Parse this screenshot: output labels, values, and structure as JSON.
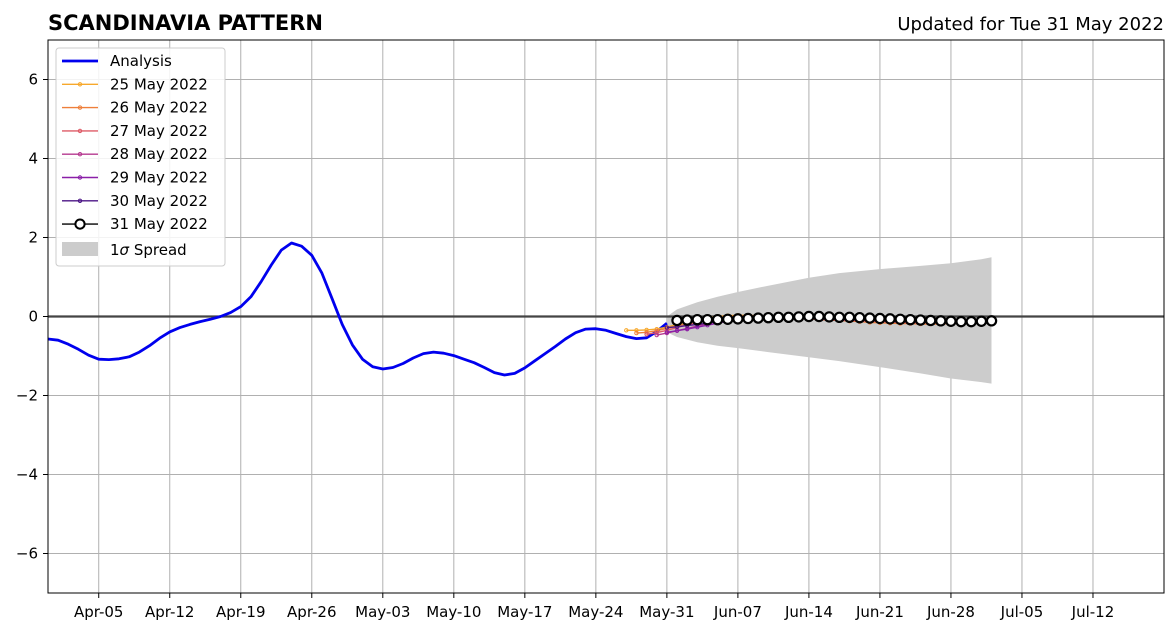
{
  "chart_data": {
    "type": "line",
    "title": "SCANDINAVIA PATTERN",
    "subtitle": "Updated for Tue 31 May 2022",
    "xlabel": "",
    "ylabel": "",
    "ylim": [
      -7,
      7
    ],
    "yticks": [
      6,
      4,
      2,
      0,
      -2,
      -4,
      -6
    ],
    "ytick_labels": [
      "6",
      "4",
      "2",
      "0",
      "−2",
      "−4",
      "−6"
    ],
    "xlim": [
      "2022-03-31",
      "2022-07-19"
    ],
    "xticks": [
      "2022-04-05",
      "2022-04-12",
      "2022-04-19",
      "2022-04-26",
      "2022-05-03",
      "2022-05-10",
      "2022-05-17",
      "2022-05-24",
      "2022-05-31",
      "2022-06-07",
      "2022-06-14",
      "2022-06-21",
      "2022-06-28",
      "2022-07-05",
      "2022-07-12"
    ],
    "xtick_labels": [
      "Apr-05",
      "Apr-12",
      "Apr-19",
      "Apr-26",
      "May-03",
      "May-10",
      "May-17",
      "May-24",
      "May-31",
      "Jun-07",
      "Jun-14",
      "Jun-21",
      "Jun-28",
      "Jul-05",
      "Jul-12"
    ],
    "grid": true,
    "legend_position": "top-left",
    "legend": [
      "Analysis",
      "25 May 2022",
      "26 May 2022",
      "27 May 2022",
      "28 May 2022",
      "29 May 2022",
      "30 May 2022",
      "31 May 2022",
      "1σ Spread"
    ],
    "spread_label_prefix": "1",
    "spread_label_symbol": "σ",
    "spread_label_suffix": " Spread",
    "analysis": {
      "name": "Analysis",
      "color": "#0000ee",
      "x": [
        "2022-03-31",
        "2022-04-01",
        "2022-04-02",
        "2022-04-03",
        "2022-04-04",
        "2022-04-05",
        "2022-04-06",
        "2022-04-07",
        "2022-04-08",
        "2022-04-09",
        "2022-04-10",
        "2022-04-11",
        "2022-04-12",
        "2022-04-13",
        "2022-04-14",
        "2022-04-15",
        "2022-04-16",
        "2022-04-17",
        "2022-04-18",
        "2022-04-19",
        "2022-04-20",
        "2022-04-21",
        "2022-04-22",
        "2022-04-23",
        "2022-04-24",
        "2022-04-25",
        "2022-04-26",
        "2022-04-27",
        "2022-04-28",
        "2022-04-29",
        "2022-04-30",
        "2022-05-01",
        "2022-05-02",
        "2022-05-03",
        "2022-05-04",
        "2022-05-05",
        "2022-05-06",
        "2022-05-07",
        "2022-05-08",
        "2022-05-09",
        "2022-05-10",
        "2022-05-11",
        "2022-05-12",
        "2022-05-13",
        "2022-05-14",
        "2022-05-15",
        "2022-05-16",
        "2022-05-17",
        "2022-05-18",
        "2022-05-19",
        "2022-05-20",
        "2022-05-21",
        "2022-05-22",
        "2022-05-23",
        "2022-05-24",
        "2022-05-25",
        "2022-05-26",
        "2022-05-27",
        "2022-05-28",
        "2022-05-29",
        "2022-05-30",
        "2022-05-31"
      ],
      "values": [
        -0.57,
        -0.6,
        -0.7,
        -0.83,
        -0.98,
        -1.08,
        -1.09,
        -1.07,
        -1.02,
        -0.9,
        -0.74,
        -0.55,
        -0.39,
        -0.28,
        -0.2,
        -0.13,
        -0.07,
        0.0,
        0.1,
        0.25,
        0.5,
        0.88,
        1.3,
        1.68,
        1.86,
        1.78,
        1.55,
        1.1,
        0.45,
        -0.2,
        -0.72,
        -1.08,
        -1.27,
        -1.33,
        -1.29,
        -1.19,
        -1.05,
        -0.94,
        -0.9,
        -0.93,
        -0.99,
        -1.08,
        -1.17,
        -1.29,
        -1.42,
        -1.48,
        -1.44,
        -1.3,
        -1.12,
        -0.94,
        -0.76,
        -0.57,
        -0.41,
        -0.32,
        -0.31,
        -0.35,
        -0.43,
        -0.51,
        -0.56,
        -0.54,
        -0.38,
        -0.17
      ]
    },
    "spread": {
      "name": "1σ Spread",
      "color": "#cccccc",
      "x": [
        "2022-05-31",
        "2022-06-01",
        "2022-06-03",
        "2022-06-05",
        "2022-06-07",
        "2022-06-10",
        "2022-06-14",
        "2022-06-17",
        "2022-06-21",
        "2022-06-25",
        "2022-06-28",
        "2022-07-01",
        "2022-07-02"
      ],
      "upper": [
        0.0,
        0.18,
        0.36,
        0.5,
        0.62,
        0.78,
        0.98,
        1.1,
        1.2,
        1.28,
        1.35,
        1.45,
        1.5
      ],
      "lower": [
        -0.4,
        -0.52,
        -0.65,
        -0.74,
        -0.8,
        -0.9,
        -1.03,
        -1.13,
        -1.28,
        -1.44,
        -1.57,
        -1.66,
        -1.7
      ]
    },
    "series": [
      {
        "name": "25 May 2022",
        "color": "#f7a82b",
        "marker": "dot",
        "x": [
          "2022-05-27",
          "2022-05-28",
          "2022-05-29",
          "2022-05-30",
          "2022-05-31",
          "2022-06-01",
          "2022-06-02",
          "2022-06-03",
          "2022-06-04",
          "2022-06-05",
          "2022-06-06",
          "2022-06-07",
          "2022-06-08",
          "2022-06-09",
          "2022-06-10",
          "2022-06-11",
          "2022-06-12",
          "2022-06-13",
          "2022-06-14",
          "2022-06-15",
          "2022-06-16",
          "2022-06-17",
          "2022-06-18",
          "2022-06-19",
          "2022-06-20",
          "2022-06-21",
          "2022-06-22",
          "2022-06-23",
          "2022-06-24",
          "2022-06-25",
          "2022-06-26",
          "2022-06-27",
          "2022-06-28",
          "2022-06-29",
          "2022-06-30",
          "2022-07-01",
          "2022-07-02"
        ],
        "values": [
          -0.35,
          -0.35,
          -0.34,
          -0.32,
          -0.27,
          -0.2,
          -0.13,
          -0.07,
          -0.03,
          0.0,
          0.02,
          0.03,
          0.03,
          0.02,
          0.01,
          0.0,
          -0.01,
          -0.03,
          -0.04,
          -0.05,
          -0.06,
          -0.07,
          -0.08,
          -0.09,
          -0.1,
          -0.11,
          -0.12,
          -0.13,
          -0.13,
          -0.14,
          -0.14,
          -0.14,
          -0.14,
          -0.13,
          -0.13,
          -0.12,
          -0.11
        ]
      },
      {
        "name": "26 May 2022",
        "color": "#ee7f3a",
        "marker": "dot",
        "x": [
          "2022-05-28",
          "2022-05-29",
          "2022-05-30",
          "2022-05-31",
          "2022-06-01",
          "2022-06-02",
          "2022-06-03",
          "2022-06-04",
          "2022-06-05",
          "2022-06-06",
          "2022-06-07",
          "2022-06-08",
          "2022-06-09",
          "2022-06-10",
          "2022-06-11",
          "2022-06-12",
          "2022-06-13",
          "2022-06-14",
          "2022-06-15",
          "2022-06-16",
          "2022-06-17",
          "2022-06-18",
          "2022-06-19",
          "2022-06-20",
          "2022-06-21",
          "2022-06-22",
          "2022-06-23",
          "2022-06-24",
          "2022-06-25",
          "2022-06-26",
          "2022-06-27",
          "2022-06-28",
          "2022-06-29",
          "2022-06-30",
          "2022-07-01",
          "2022-07-02"
        ],
        "values": [
          -0.42,
          -0.4,
          -0.36,
          -0.3,
          -0.24,
          -0.17,
          -0.11,
          -0.06,
          -0.02,
          0.0,
          0.01,
          0.02,
          0.01,
          0.0,
          -0.01,
          -0.03,
          -0.05,
          -0.06,
          -0.08,
          -0.09,
          -0.1,
          -0.12,
          -0.13,
          -0.15,
          -0.16,
          -0.17,
          -0.18,
          -0.18,
          -0.19,
          -0.19,
          -0.19,
          -0.18,
          -0.17,
          -0.16,
          -0.14,
          -0.13
        ]
      },
      {
        "name": "27 May 2022",
        "color": "#de5a66",
        "marker": "dot",
        "x": [
          "2022-05-29",
          "2022-05-30",
          "2022-05-31",
          "2022-06-01",
          "2022-06-02",
          "2022-06-03",
          "2022-06-04",
          "2022-06-05",
          "2022-06-06",
          "2022-06-07",
          "2022-06-08",
          "2022-06-09",
          "2022-06-10",
          "2022-06-11",
          "2022-06-12",
          "2022-06-13",
          "2022-06-14",
          "2022-06-15",
          "2022-06-16",
          "2022-06-17",
          "2022-06-18",
          "2022-06-19",
          "2022-06-20",
          "2022-06-21",
          "2022-06-22",
          "2022-06-23",
          "2022-06-24",
          "2022-06-25",
          "2022-06-26",
          "2022-06-27",
          "2022-06-28",
          "2022-06-29",
          "2022-06-30",
          "2022-07-01",
          "2022-07-02"
        ],
        "values": [
          -0.45,
          -0.41,
          -0.35,
          -0.28,
          -0.21,
          -0.15,
          -0.1,
          -0.06,
          -0.03,
          -0.01,
          0.0,
          0.0,
          -0.01,
          -0.02,
          -0.03,
          -0.04,
          -0.05,
          -0.07,
          -0.08,
          -0.09,
          -0.1,
          -0.11,
          -0.12,
          -0.13,
          -0.14,
          -0.15,
          -0.16,
          -0.16,
          -0.16,
          -0.16,
          -0.15,
          -0.14,
          -0.13,
          -0.12,
          -0.11
        ]
      },
      {
        "name": "28 May 2022",
        "color": "#b5388f",
        "marker": "dot",
        "x": [
          "2022-05-30",
          "2022-05-31",
          "2022-06-01",
          "2022-06-02",
          "2022-06-03",
          "2022-06-04",
          "2022-06-05",
          "2022-06-06",
          "2022-06-07",
          "2022-06-08",
          "2022-06-09",
          "2022-06-10",
          "2022-06-11",
          "2022-06-12",
          "2022-06-13",
          "2022-06-14",
          "2022-06-15",
          "2022-06-16",
          "2022-06-17",
          "2022-06-18",
          "2022-06-19",
          "2022-06-20",
          "2022-06-21",
          "2022-06-22",
          "2022-06-23",
          "2022-06-24",
          "2022-06-25",
          "2022-06-26",
          "2022-06-27",
          "2022-06-28",
          "2022-06-29",
          "2022-06-30",
          "2022-07-01",
          "2022-07-02"
        ],
        "values": [
          -0.47,
          -0.42,
          -0.36,
          -0.3,
          -0.24,
          -0.18,
          -0.13,
          -0.08,
          -0.05,
          -0.03,
          -0.02,
          -0.02,
          -0.02,
          -0.03,
          -0.04,
          -0.05,
          -0.06,
          -0.07,
          -0.08,
          -0.09,
          -0.1,
          -0.11,
          -0.12,
          -0.13,
          -0.13,
          -0.14,
          -0.14,
          -0.14,
          -0.14,
          -0.13,
          -0.13,
          -0.12,
          -0.11,
          -0.1
        ]
      },
      {
        "name": "29 May 2022",
        "color": "#8a1fa8",
        "marker": "dot",
        "x": [
          "2022-05-31",
          "2022-06-01",
          "2022-06-02",
          "2022-06-03",
          "2022-06-04",
          "2022-06-05",
          "2022-06-06",
          "2022-06-07",
          "2022-06-08",
          "2022-06-09",
          "2022-06-10",
          "2022-06-11",
          "2022-06-12",
          "2022-06-13",
          "2022-06-14",
          "2022-06-15",
          "2022-06-16",
          "2022-06-17",
          "2022-06-18",
          "2022-06-19",
          "2022-06-20",
          "2022-06-21",
          "2022-06-22",
          "2022-06-23",
          "2022-06-24",
          "2022-06-25",
          "2022-06-26",
          "2022-06-27",
          "2022-06-28",
          "2022-06-29",
          "2022-06-30",
          "2022-07-01",
          "2022-07-02"
        ],
        "values": [
          -0.4,
          -0.36,
          -0.32,
          -0.27,
          -0.22,
          -0.17,
          -0.12,
          -0.08,
          -0.05,
          -0.03,
          -0.02,
          -0.02,
          -0.02,
          -0.03,
          -0.03,
          -0.04,
          -0.05,
          -0.06,
          -0.07,
          -0.08,
          -0.09,
          -0.1,
          -0.11,
          -0.11,
          -0.12,
          -0.12,
          -0.12,
          -0.12,
          -0.12,
          -0.11,
          -0.11,
          -0.1,
          -0.1
        ]
      },
      {
        "name": "30 May 2022",
        "color": "#4b1486",
        "marker": "dot",
        "x": [
          "2022-05-31",
          "2022-06-01",
          "2022-06-02",
          "2022-06-03",
          "2022-06-04",
          "2022-06-05",
          "2022-06-06",
          "2022-06-07",
          "2022-06-08",
          "2022-06-09",
          "2022-06-10",
          "2022-06-11",
          "2022-06-12",
          "2022-06-13",
          "2022-06-14",
          "2022-06-15",
          "2022-06-16",
          "2022-06-17",
          "2022-06-18",
          "2022-06-19",
          "2022-06-20",
          "2022-06-21",
          "2022-06-22",
          "2022-06-23",
          "2022-06-24",
          "2022-06-25",
          "2022-06-26",
          "2022-06-27",
          "2022-06-28",
          "2022-06-29",
          "2022-06-30",
          "2022-07-01",
          "2022-07-02"
        ],
        "values": [
          -0.28,
          -0.26,
          -0.23,
          -0.2,
          -0.17,
          -0.13,
          -0.1,
          -0.07,
          -0.05,
          -0.03,
          -0.02,
          -0.01,
          -0.01,
          -0.01,
          -0.02,
          -0.03,
          -0.04,
          -0.05,
          -0.06,
          -0.07,
          -0.08,
          -0.09,
          -0.1,
          -0.1,
          -0.11,
          -0.11,
          -0.11,
          -0.11,
          -0.11,
          -0.1,
          -0.1,
          -0.1,
          -0.1
        ]
      },
      {
        "name": "31 May 2022",
        "color": "#000000",
        "marker": "open-circle",
        "x": [
          "2022-06-01",
          "2022-06-02",
          "2022-06-03",
          "2022-06-04",
          "2022-06-05",
          "2022-06-06",
          "2022-06-07",
          "2022-06-08",
          "2022-06-09",
          "2022-06-10",
          "2022-06-11",
          "2022-06-12",
          "2022-06-13",
          "2022-06-14",
          "2022-06-15",
          "2022-06-16",
          "2022-06-17",
          "2022-06-18",
          "2022-06-19",
          "2022-06-20",
          "2022-06-21",
          "2022-06-22",
          "2022-06-23",
          "2022-06-24",
          "2022-06-25",
          "2022-06-26",
          "2022-06-27",
          "2022-06-28",
          "2022-06-29",
          "2022-06-30",
          "2022-07-01",
          "2022-07-02"
        ],
        "values": [
          -0.1,
          -0.09,
          -0.08,
          -0.08,
          -0.08,
          -0.07,
          -0.06,
          -0.05,
          -0.04,
          -0.03,
          -0.02,
          -0.02,
          -0.01,
          0.0,
          0.0,
          -0.01,
          -0.02,
          -0.02,
          -0.03,
          -0.04,
          -0.05,
          -0.06,
          -0.07,
          -0.08,
          -0.09,
          -0.1,
          -0.11,
          -0.12,
          -0.13,
          -0.13,
          -0.12,
          -0.11
        ]
      }
    ]
  }
}
